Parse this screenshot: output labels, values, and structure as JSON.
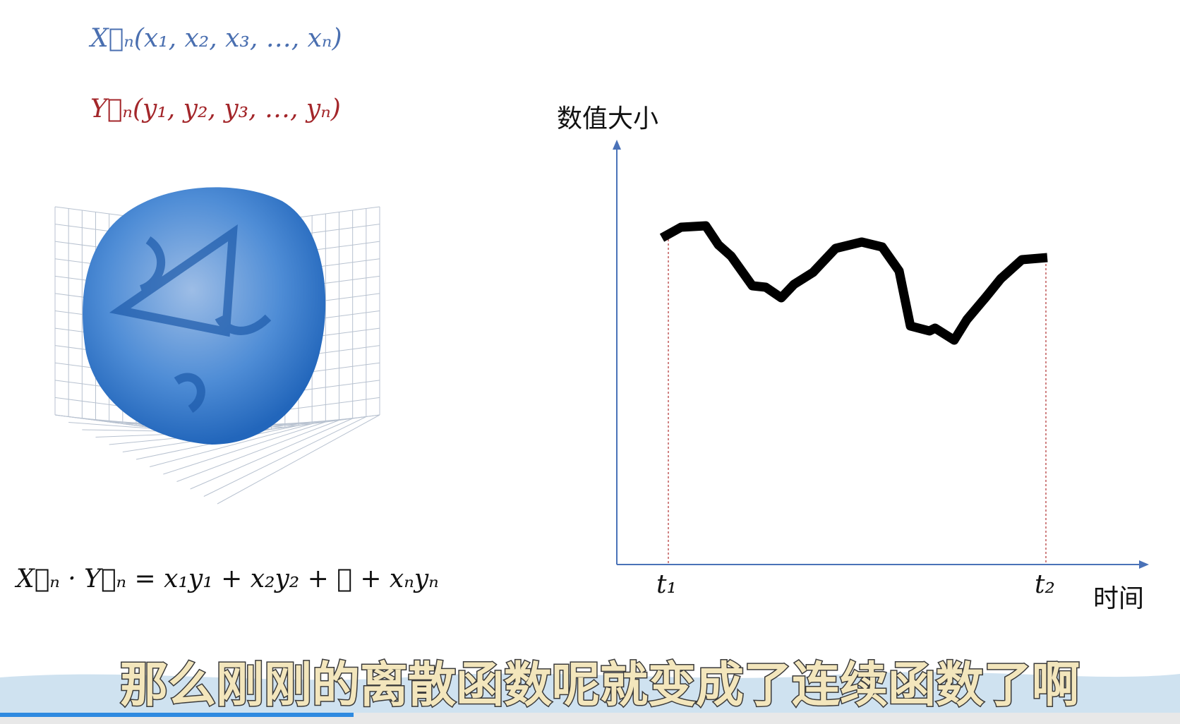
{
  "formulas": {
    "x_vector": "X⃗ₙ(x₁, x₂, x₃, …, xₙ)",
    "y_vector": "Y⃗ₙ(y₁, y₂, y₃, …, yₙ)",
    "dot_product": "X⃗ₙ · Y⃗ₙ = x₁y₁ + x₂y₂ + ⋯ + xₙyₙ"
  },
  "graph": {
    "y_axis_label": "数值大小",
    "x_axis_label": "时间",
    "t_start": "t₁",
    "t_end": "t₂"
  },
  "subtitle": "那么刚刚的离散函数呢就变成了连续函数了啊"
}
